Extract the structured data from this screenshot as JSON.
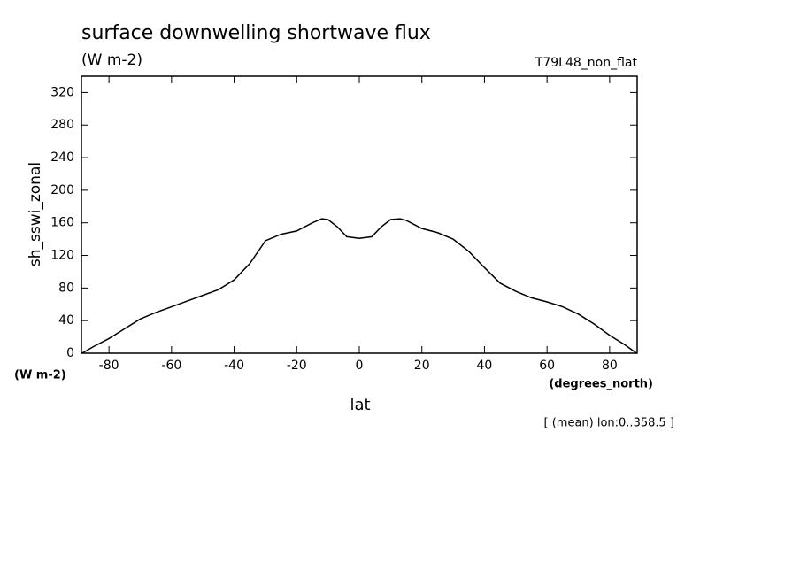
{
  "chart_data": {
    "type": "line",
    "title": "surface downwelling shortwave flux",
    "subtitle": "(W m-2)",
    "annotation_right": "T79L48_non_flat",
    "y_label": "sh_sswi_zonal",
    "y_units": "(W m-2)",
    "x_label": "lat",
    "x_units": "(degrees_north)",
    "footnote": "[ (mean) lon:0..358.5 ]",
    "color": "#000000",
    "x": [
      -88.6,
      -85,
      -80,
      -75,
      -70,
      -65,
      -60,
      -55,
      -50,
      -45,
      -40,
      -35,
      -30,
      -25,
      -20,
      -15,
      -12,
      -10,
      -7,
      -4,
      0,
      4,
      7,
      10,
      13,
      15,
      20,
      25,
      30,
      35,
      40,
      45,
      50,
      55,
      60,
      65,
      70,
      75,
      80,
      85,
      88.6
    ],
    "values": [
      0,
      8,
      18,
      30,
      42,
      50,
      57,
      64,
      71,
      78,
      90,
      110,
      138,
      146,
      150,
      160,
      165,
      164,
      155,
      143,
      141,
      143,
      155,
      164,
      165,
      163,
      153,
      148,
      140,
      125,
      105,
      86,
      76,
      68,
      63,
      57,
      48,
      36,
      22,
      10,
      0
    ],
    "xlim": [
      -88.8,
      88.8
    ],
    "ylim": [
      0,
      340
    ],
    "xticks": [
      -80,
      -60,
      -40,
      -20,
      0,
      20,
      40,
      60,
      80
    ],
    "yticks": [
      0,
      40,
      80,
      120,
      160,
      200,
      240,
      280,
      320
    ]
  }
}
